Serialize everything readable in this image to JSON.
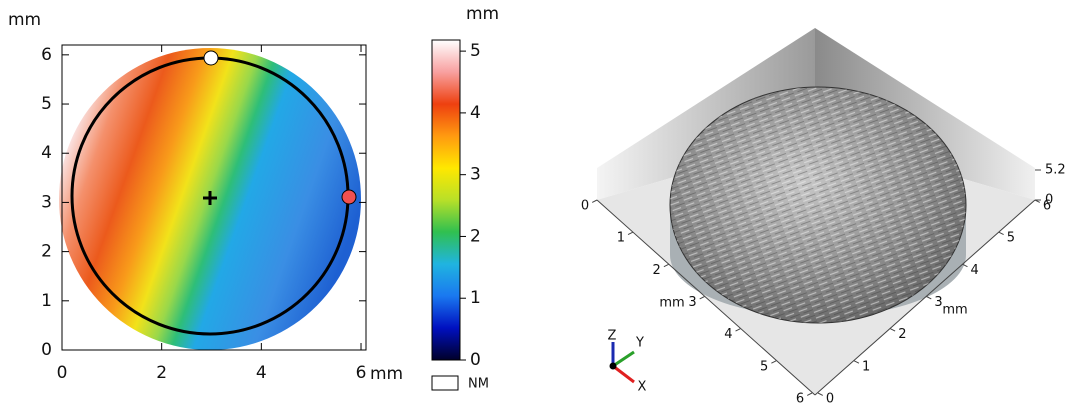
{
  "chart_data": [
    {
      "type": "heatmap",
      "y_label": "mm",
      "x_unit": "mm",
      "xlim": [
        0,
        6.1
      ],
      "ylim": [
        0,
        6.2
      ],
      "xticks": [
        0,
        2,
        4,
        6
      ],
      "yticks": [
        0,
        1,
        2,
        3,
        4,
        5,
        6
      ],
      "colorbar": {
        "label": "mm",
        "lim": [
          0,
          5.18
        ],
        "ticks": [
          0,
          1,
          2,
          3,
          4,
          5
        ],
        "colors": [
          "#00002a",
          "#0010c0",
          "#1a78f0",
          "#20b4e0",
          "#30c050",
          "#b8e028",
          "#ffe800",
          "#ff9a10",
          "#ee4010",
          "#f8a0a0",
          "#ffffff"
        ],
        "no_data_label": "NM"
      }
    },
    {
      "type": "surface3d",
      "x_label": "mm",
      "y_label": "mm",
      "xticks": [
        0,
        1,
        2,
        3,
        4,
        5,
        6
      ],
      "yticks": [
        0,
        1,
        2,
        3,
        4,
        5,
        6
      ],
      "zticks": [
        0,
        5.2
      ],
      "triad": [
        "X",
        "Y",
        "Z"
      ]
    }
  ]
}
